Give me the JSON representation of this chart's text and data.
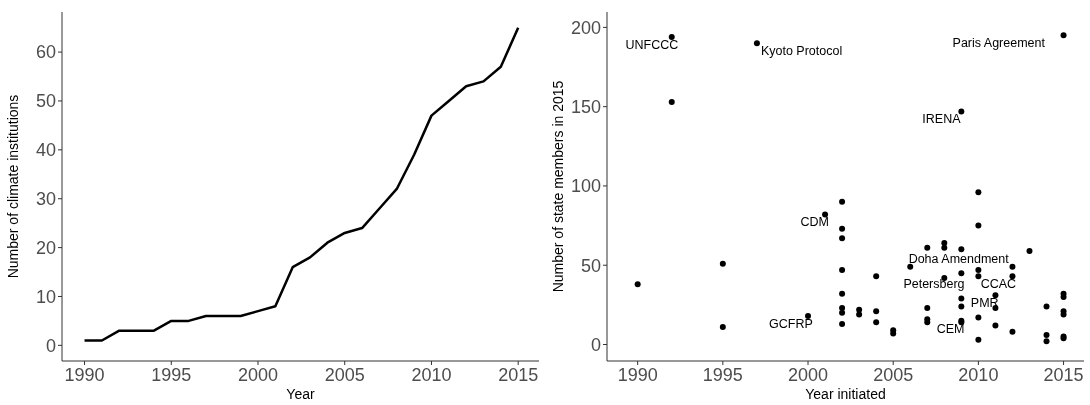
{
  "chart_data": [
    {
      "type": "line",
      "xlabel": "Year",
      "ylabel": "Number of climate institutions",
      "x": [
        1990,
        1991,
        1992,
        1993,
        1994,
        1995,
        1996,
        1997,
        1998,
        1999,
        2000,
        2001,
        2002,
        2003,
        2004,
        2005,
        2006,
        2007,
        2008,
        2009,
        2010,
        2011,
        2012,
        2013,
        2014,
        2015
      ],
      "series": [
        {
          "color": "#000000",
          "values": [
            1,
            1,
            3,
            3,
            3,
            5,
            5,
            6,
            6,
            6,
            7,
            8,
            16,
            18,
            21,
            23,
            24,
            28,
            32,
            39,
            47,
            50,
            53,
            54,
            57,
            65
          ]
        }
      ],
      "xlim": [
        1988.7,
        2016.2
      ],
      "xticks": [
        1990,
        1995,
        2000,
        2005,
        2010,
        2015
      ],
      "ylim": [
        -3.2,
        68.2
      ],
      "yticks": [
        0,
        10,
        20,
        30,
        40,
        50,
        60
      ],
      "grid": false,
      "marker": "none",
      "line_style": "solid"
    },
    {
      "type": "scatter",
      "xlabel": "Year initiated",
      "ylabel": "Number of state members in 2015",
      "x": [
        1990,
        1992,
        1992,
        1995,
        1995,
        1997,
        2000,
        2001,
        2002,
        2002,
        2002,
        2002,
        2002,
        2002,
        2002,
        2002,
        2003,
        2003,
        2004,
        2004,
        2004,
        2005,
        2005,
        2006,
        2007,
        2007,
        2007,
        2007,
        2008,
        2008,
        2008,
        2009,
        2009,
        2009,
        2009,
        2009,
        2009,
        2009,
        2010,
        2010,
        2010,
        2010,
        2010,
        2010,
        2011,
        2011,
        2011,
        2012,
        2012,
        2012,
        2013,
        2014,
        2014,
        2014,
        2015,
        2015,
        2015,
        2015,
        2015,
        2015,
        2015
      ],
      "series": [
        {
          "color": "#000000",
          "values": [
            38,
            194,
            153,
            51,
            11,
            190,
            18,
            82,
            90,
            73,
            67,
            47,
            32,
            23,
            20,
            13,
            22,
            19,
            43,
            21,
            14,
            9,
            7,
            49,
            61,
            23,
            16,
            14,
            64,
            61,
            42,
            147,
            60,
            45,
            29,
            24,
            15,
            14,
            96,
            75,
            47,
            43,
            17,
            3,
            31,
            23,
            12,
            49,
            43,
            8,
            59,
            24,
            6,
            2,
            195,
            32,
            30,
            21,
            19,
            5,
            4
          ]
        }
      ],
      "xlim": [
        1988.2,
        2016.2
      ],
      "xticks": [
        1990,
        1995,
        2000,
        2005,
        2010,
        2015
      ],
      "ylim": [
        -10.4,
        209.7
      ],
      "yticks": [
        0,
        50,
        100,
        150,
        200
      ],
      "grid": false,
      "marker": "circle",
      "annotations": [
        {
          "text": "UNFCCC",
          "x": 1992,
          "y": 194
        },
        {
          "text": "Kyoto Protocol",
          "x": 1997,
          "y": 190
        },
        {
          "text": "Paris Agreement",
          "x": 2015,
          "y": 195
        },
        {
          "text": "IRENA",
          "x": 2009,
          "y": 147
        },
        {
          "text": "CDM",
          "x": 2001,
          "y": 82
        },
        {
          "text": "CCAC",
          "x": 2012,
          "y": 43
        },
        {
          "text": "Petersberg",
          "x": 2010,
          "y": 43
        },
        {
          "text": "Doha Amendment",
          "x": 2012,
          "y": 49
        },
        {
          "text": "PMR",
          "x": 2011,
          "y": 31
        },
        {
          "text": "GCFRP",
          "x": 2000,
          "y": 18
        },
        {
          "text": "CEM",
          "x": 2009,
          "y": 15
        }
      ]
    }
  ]
}
